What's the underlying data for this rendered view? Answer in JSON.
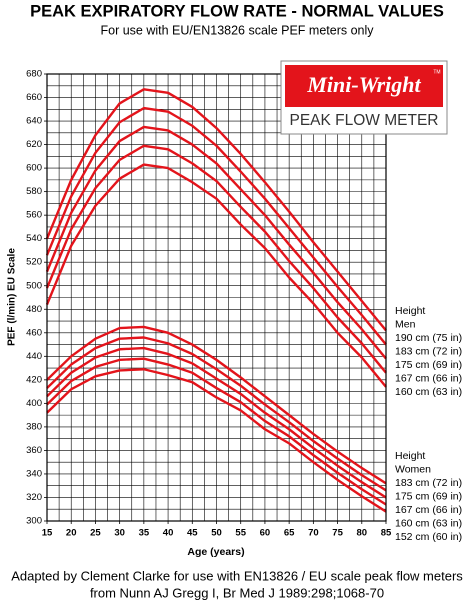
{
  "chart_data": {
    "type": "line",
    "title": "PEAK EXPIRATORY FLOW RATE - NORMAL VALUES",
    "subtitle": "For use with EU/EN13826 scale PEF meters only",
    "x_label": "Age (years)",
    "y_label": "PEF (l/min) EU Scale",
    "x": [
      15,
      20,
      25,
      30,
      35,
      40,
      45,
      50,
      55,
      60,
      65,
      70,
      75,
      80,
      85
    ],
    "xlim": [
      15,
      85
    ],
    "xticks": [
      15,
      20,
      25,
      30,
      35,
      40,
      45,
      50,
      55,
      60,
      65,
      70,
      75,
      80,
      85
    ],
    "ylim": [
      300,
      680
    ],
    "yticks": [
      300,
      320,
      340,
      360,
      380,
      400,
      420,
      440,
      460,
      480,
      500,
      520,
      540,
      560,
      580,
      600,
      620,
      640,
      660,
      680
    ],
    "grid": true,
    "xgrid_step": 2.5,
    "ygrid_step": 10,
    "legend_groups": [
      {
        "title": "Height",
        "subtitle": "Men",
        "series": [
          0,
          1,
          2,
          3,
          4
        ]
      },
      {
        "title": "Height",
        "subtitle": "Women",
        "series": [
          5,
          6,
          7,
          8,
          9
        ]
      }
    ],
    "series": [
      {
        "name": "190 cm (75 in)",
        "color": "#e3141b",
        "values": [
          540,
          590,
          628,
          655,
          667,
          664,
          652,
          634,
          612,
          588,
          563,
          537,
          512,
          487,
          462
        ]
      },
      {
        "name": "183 cm (72 in)",
        "color": "#e3141b",
        "values": [
          526,
          576,
          613,
          639,
          651,
          648,
          636,
          619,
          597,
          574,
          549,
          524,
          499,
          475,
          450
        ]
      },
      {
        "name": "175 cm (69 in)",
        "color": "#e3141b",
        "values": [
          512,
          562,
          598,
          623,
          635,
          632,
          620,
          604,
          582,
          560,
          535,
          511,
          486,
          463,
          438
        ]
      },
      {
        "name": "167 cm (66 in)",
        "color": "#e3141b",
        "values": [
          498,
          548,
          583,
          607,
          619,
          616,
          604,
          589,
          567,
          546,
          521,
          498,
          473,
          451,
          426
        ]
      },
      {
        "name": "160 cm (63 in)",
        "color": "#e3141b",
        "values": [
          484,
          534,
          568,
          591,
          603,
          600,
          588,
          574,
          552,
          532,
          507,
          485,
          460,
          439,
          414
        ]
      },
      {
        "name": "183 cm (72 in)",
        "color": "#e3141b",
        "values": [
          420,
          440,
          455,
          464,
          465,
          460,
          450,
          437,
          422,
          406,
          390,
          374,
          359,
          345,
          332
        ]
      },
      {
        "name": "175 cm (69 in)",
        "color": "#e3141b",
        "values": [
          413,
          433,
          447,
          455,
          456,
          451,
          442,
          429,
          415,
          399,
          384,
          368,
          353,
          339,
          326
        ]
      },
      {
        "name": "167 cm (66 in)",
        "color": "#e3141b",
        "values": [
          406,
          426,
          439,
          446,
          447,
          442,
          434,
          421,
          408,
          392,
          378,
          362,
          347,
          333,
          320
        ]
      },
      {
        "name": "160 cm (63 in)",
        "color": "#e3141b",
        "values": [
          399,
          419,
          431,
          437,
          438,
          433,
          426,
          413,
          401,
          385,
          372,
          356,
          341,
          327,
          314
        ]
      },
      {
        "name": "152 cm (60 in)",
        "color": "#e3141b",
        "values": [
          392,
          412,
          423,
          428,
          429,
          424,
          418,
          405,
          394,
          378,
          366,
          350,
          335,
          321,
          308
        ]
      }
    ],
    "logo": {
      "brand": "Mini-Wright",
      "mark": "TM",
      "product": "PEAK FLOW METER"
    },
    "footer": [
      "Adapted by Clement Clarke for use with EN13826 / EU scale peak flow meters",
      "from Nunn AJ Gregg I, Br Med J 1989:298;1068-70"
    ]
  }
}
